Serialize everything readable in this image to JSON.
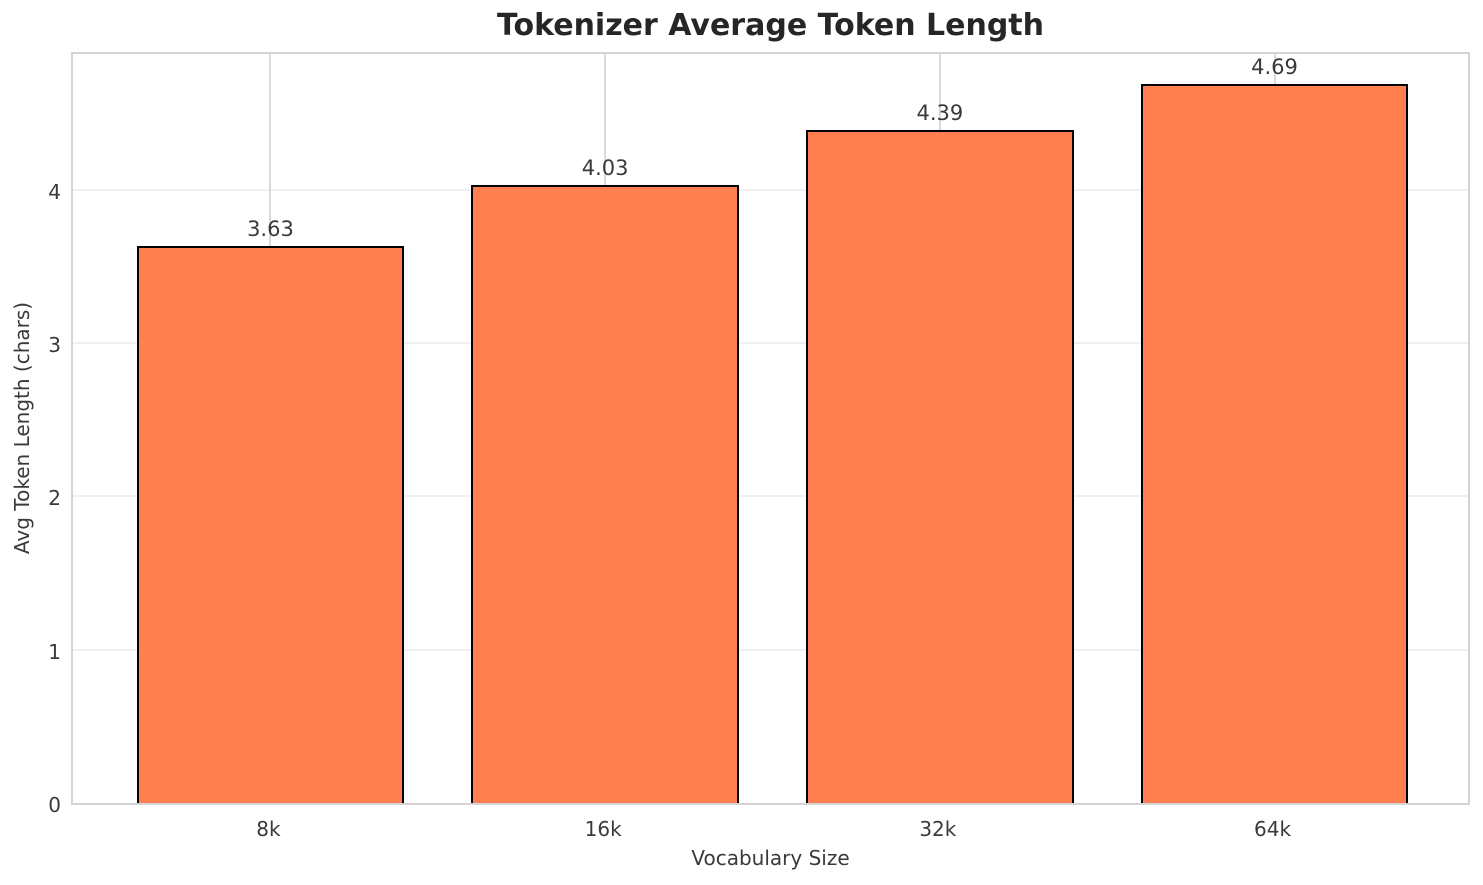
{
  "chart_data": {
    "type": "bar",
    "title": "Tokenizer Average Token Length",
    "xlabel": "Vocabulary Size",
    "ylabel": "Avg Token Length (chars)",
    "categories": [
      "8k",
      "16k",
      "32k",
      "64k"
    ],
    "values": [
      3.63,
      4.03,
      4.39,
      4.69
    ],
    "value_labels": [
      "3.63",
      "4.03",
      "4.39",
      "4.69"
    ],
    "yticks": [
      0,
      1,
      2,
      3,
      4
    ],
    "ylim": [
      0,
      4.91
    ],
    "xlim": [
      -0.59,
      3.59
    ],
    "bar_width": 0.8,
    "grid": true,
    "legend": false,
    "colors": {
      "bar_fill": "#FF7F50",
      "bar_edge": "#000000",
      "title_text": "#262626",
      "label_text": "#3a3a3a",
      "spine": "#d4d4d4",
      "grid_horizontal": "#f0f0f0",
      "grid_vertical": "#d9d9d9"
    }
  }
}
